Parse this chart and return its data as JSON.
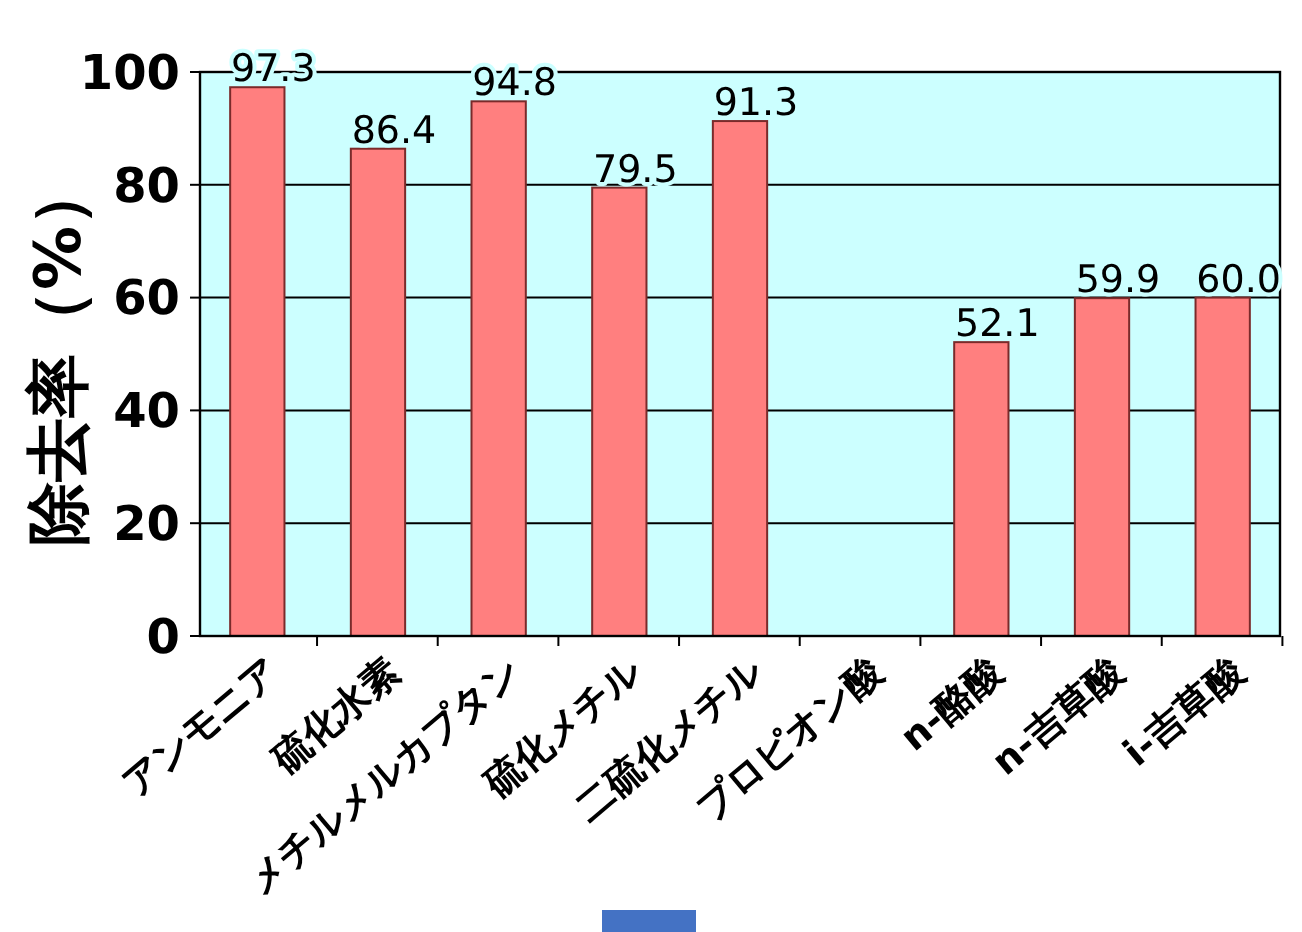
{
  "chart_data": {
    "type": "bar",
    "ylabel": "除去率（%）",
    "categories": [
      "アンモニア",
      "硫化水素",
      "メチルメルカプタン",
      "硫化メチル",
      "二硫化メチル",
      "プロピオン酸",
      "n-酪酸",
      "n-吉草酸",
      "i-吉草酸"
    ],
    "values": [
      97.3,
      86.4,
      94.8,
      79.5,
      91.3,
      null,
      52.1,
      59.9,
      60.0
    ],
    "value_labels": [
      "97.3",
      "86.4",
      "94.8",
      "79.5",
      "91.3",
      null,
      "52.1",
      "59.9",
      "60.0"
    ],
    "color": "#ff7f7f",
    "ylim": [
      0,
      100
    ],
    "yticks": [
      0,
      20,
      40,
      60,
      80,
      100
    ],
    "grid": "y"
  }
}
